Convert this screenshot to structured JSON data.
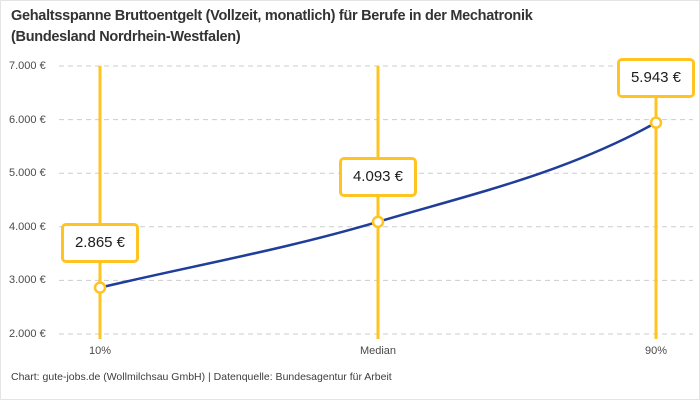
{
  "header": {
    "title": "Gehaltsspanne Bruttoentgelt (Vollzeit, monatlich) für Berufe in der Mechatronik\n(Bundesland Nordrhein-Westfalen)"
  },
  "footer": {
    "attribution": "Chart: gute-jobs.de (Wollmilchsau GmbH) | Datenquelle: Bundesagentur für Arbeit"
  },
  "colors": {
    "accent_yellow": "#ffc421",
    "curve_blue": "#1f3d99",
    "grid_gray": "#cdcdcd",
    "title_text": "#333333",
    "axis_text": "#4a4a4a"
  },
  "chart_data": {
    "type": "line",
    "title": "Gehaltsspanne Bruttoentgelt (Vollzeit, monatlich) für Berufe in der Mechatronik (Bundesland Nordrhein-Westfalen)",
    "categories": [
      "10%",
      "Median",
      "90%"
    ],
    "series": [
      {
        "name": "Bruttoentgelt (Vollzeit, monatlich)",
        "values": [
          2865,
          4093,
          5943
        ]
      }
    ],
    "point_labels": [
      "2.865 €",
      "4.093 €",
      "5.943 €"
    ],
    "y_ticks": [
      {
        "value": 2000,
        "label": "2.000 €"
      },
      {
        "value": 3000,
        "label": "3.000 €"
      },
      {
        "value": 4000,
        "label": "4.000 €"
      },
      {
        "value": 5000,
        "label": "5.000 €"
      },
      {
        "value": 6000,
        "label": "6.000 €"
      },
      {
        "value": 7000,
        "label": "7.000 €"
      }
    ],
    "ylim": [
      2000,
      7000
    ],
    "grid": "horizontal-dashed",
    "legend": "none",
    "marker": "open-circle",
    "annotations": "vertical accent line per category with framed value label",
    "xlabel": "",
    "ylabel": ""
  }
}
